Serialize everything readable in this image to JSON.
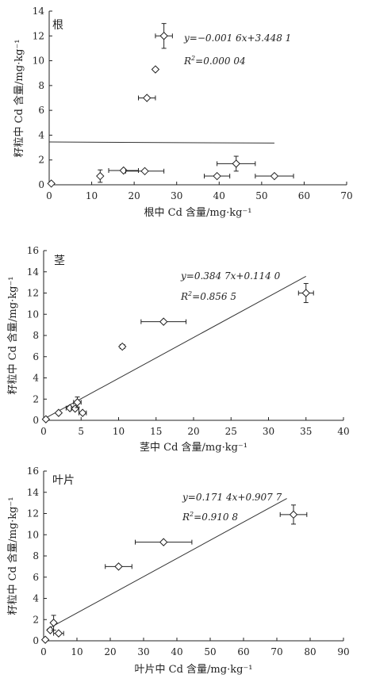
{
  "chart_data": [
    {
      "type": "scatter",
      "panel_label": "根",
      "xlabel": "根中 Cd 含量/mg·kg⁻¹",
      "ylabel": "籽粒中 Cd 含量/mg·kg⁻¹",
      "xlim": [
        0,
        70
      ],
      "ylim": [
        0,
        14
      ],
      "xticks": [
        "0",
        "10",
        "20",
        "30",
        "40",
        "50",
        "60",
        "70"
      ],
      "yticks": [
        "0",
        "2",
        "4",
        "6",
        "8",
        "10",
        "12",
        "14"
      ],
      "equation": "y=−0.001 6x+3.448 1",
      "r2_text": "=0.000 04",
      "fit": {
        "slope": -0.0016,
        "intercept": 3.4481,
        "x_range": [
          0,
          53
        ]
      },
      "points": [
        {
          "x": 0.5,
          "y": 0.1,
          "xerr": 0,
          "yerr": 0
        },
        {
          "x": 12,
          "y": 0.7,
          "xerr": 0,
          "yerr": 0.5
        },
        {
          "x": 17.5,
          "y": 1.15,
          "xerr": 3.5,
          "yerr": 0
        },
        {
          "x": 22.5,
          "y": 1.1,
          "xerr": 4.5,
          "yerr": 0
        },
        {
          "x": 23,
          "y": 7.0,
          "xerr": 2,
          "yerr": 0
        },
        {
          "x": 25,
          "y": 9.3,
          "xerr": 0,
          "yerr": 0
        },
        {
          "x": 27,
          "y": 12.0,
          "xerr": 2,
          "yerr": 1.0
        },
        {
          "x": 39.5,
          "y": 0.7,
          "xerr": 3,
          "yerr": 0
        },
        {
          "x": 44,
          "y": 1.7,
          "xerr": 4.5,
          "yerr": 0.6
        },
        {
          "x": 53,
          "y": 0.7,
          "xerr": 4.5,
          "yerr": 0
        }
      ]
    },
    {
      "type": "scatter",
      "panel_label": "茎",
      "xlabel": "茎中 Cd 含量/mg·kg⁻¹",
      "ylabel": "籽粒中 Cd 含量/mg·kg⁻¹",
      "xlim": [
        0,
        40
      ],
      "ylim": [
        0,
        16
      ],
      "xticks": [
        "0",
        "5",
        "10",
        "15",
        "20",
        "25",
        "30",
        "35",
        "40"
      ],
      "yticks": [
        "0",
        "2",
        "4",
        "6",
        "8",
        "10",
        "12",
        "14",
        "16"
      ],
      "equation": "y=0.384 7x+0.114 0",
      "r2_text": "=0.856 5",
      "fit": {
        "slope": 0.3847,
        "intercept": 0.114,
        "x_range": [
          0,
          35
        ]
      },
      "points": [
        {
          "x": 0.3,
          "y": 0.1,
          "xerr": 0,
          "yerr": 0
        },
        {
          "x": 2.0,
          "y": 0.7,
          "xerr": 0,
          "yerr": 0
        },
        {
          "x": 3.5,
          "y": 1.15,
          "xerr": 0.5,
          "yerr": 0
        },
        {
          "x": 4.2,
          "y": 1.1,
          "xerr": 0.5,
          "yerr": 0
        },
        {
          "x": 4.5,
          "y": 1.7,
          "xerr": 0.5,
          "yerr": 0.5
        },
        {
          "x": 5.2,
          "y": 0.7,
          "xerr": 0.5,
          "yerr": 0
        },
        {
          "x": 10.5,
          "y": 6.95,
          "xerr": 0.3,
          "yerr": 0
        },
        {
          "x": 16,
          "y": 9.3,
          "xerr": 3,
          "yerr": 0
        },
        {
          "x": 35,
          "y": 12.0,
          "xerr": 1,
          "yerr": 0.9
        }
      ]
    },
    {
      "type": "scatter",
      "panel_label": "叶片",
      "xlabel": "叶片中 Cd 含量/mg·kg⁻¹",
      "ylabel": "籽粒中 Cd 含量/mg·kg⁻¹",
      "xlim": [
        0,
        90
      ],
      "ylim": [
        0,
        16
      ],
      "xticks": [
        "0",
        "10",
        "20",
        "30",
        "40",
        "50",
        "60",
        "70",
        "80",
        "90"
      ],
      "yticks": [
        "0",
        "2",
        "4",
        "6",
        "8",
        "10",
        "12",
        "14",
        "16"
      ],
      "equation": "y=0.171 4x+0.907 7",
      "r2_text": "=0.910 8",
      "fit": {
        "slope": 0.1714,
        "intercept": 0.9077,
        "x_range": [
          1,
          73
        ]
      },
      "points": [
        {
          "x": 0.5,
          "y": 0.1,
          "xerr": 0,
          "yerr": 0
        },
        {
          "x": 2.0,
          "y": 1.0,
          "xerr": 0,
          "yerr": 0
        },
        {
          "x": 3.0,
          "y": 1.7,
          "xerr": 0,
          "yerr": 0.7
        },
        {
          "x": 4.5,
          "y": 0.7,
          "xerr": 1.5,
          "yerr": 0
        },
        {
          "x": 22.5,
          "y": 7.0,
          "xerr": 4,
          "yerr": 0
        },
        {
          "x": 36,
          "y": 9.3,
          "xerr": 8.5,
          "yerr": 0
        },
        {
          "x": 75,
          "y": 11.9,
          "xerr": 4,
          "yerr": 0.9
        }
      ]
    }
  ]
}
